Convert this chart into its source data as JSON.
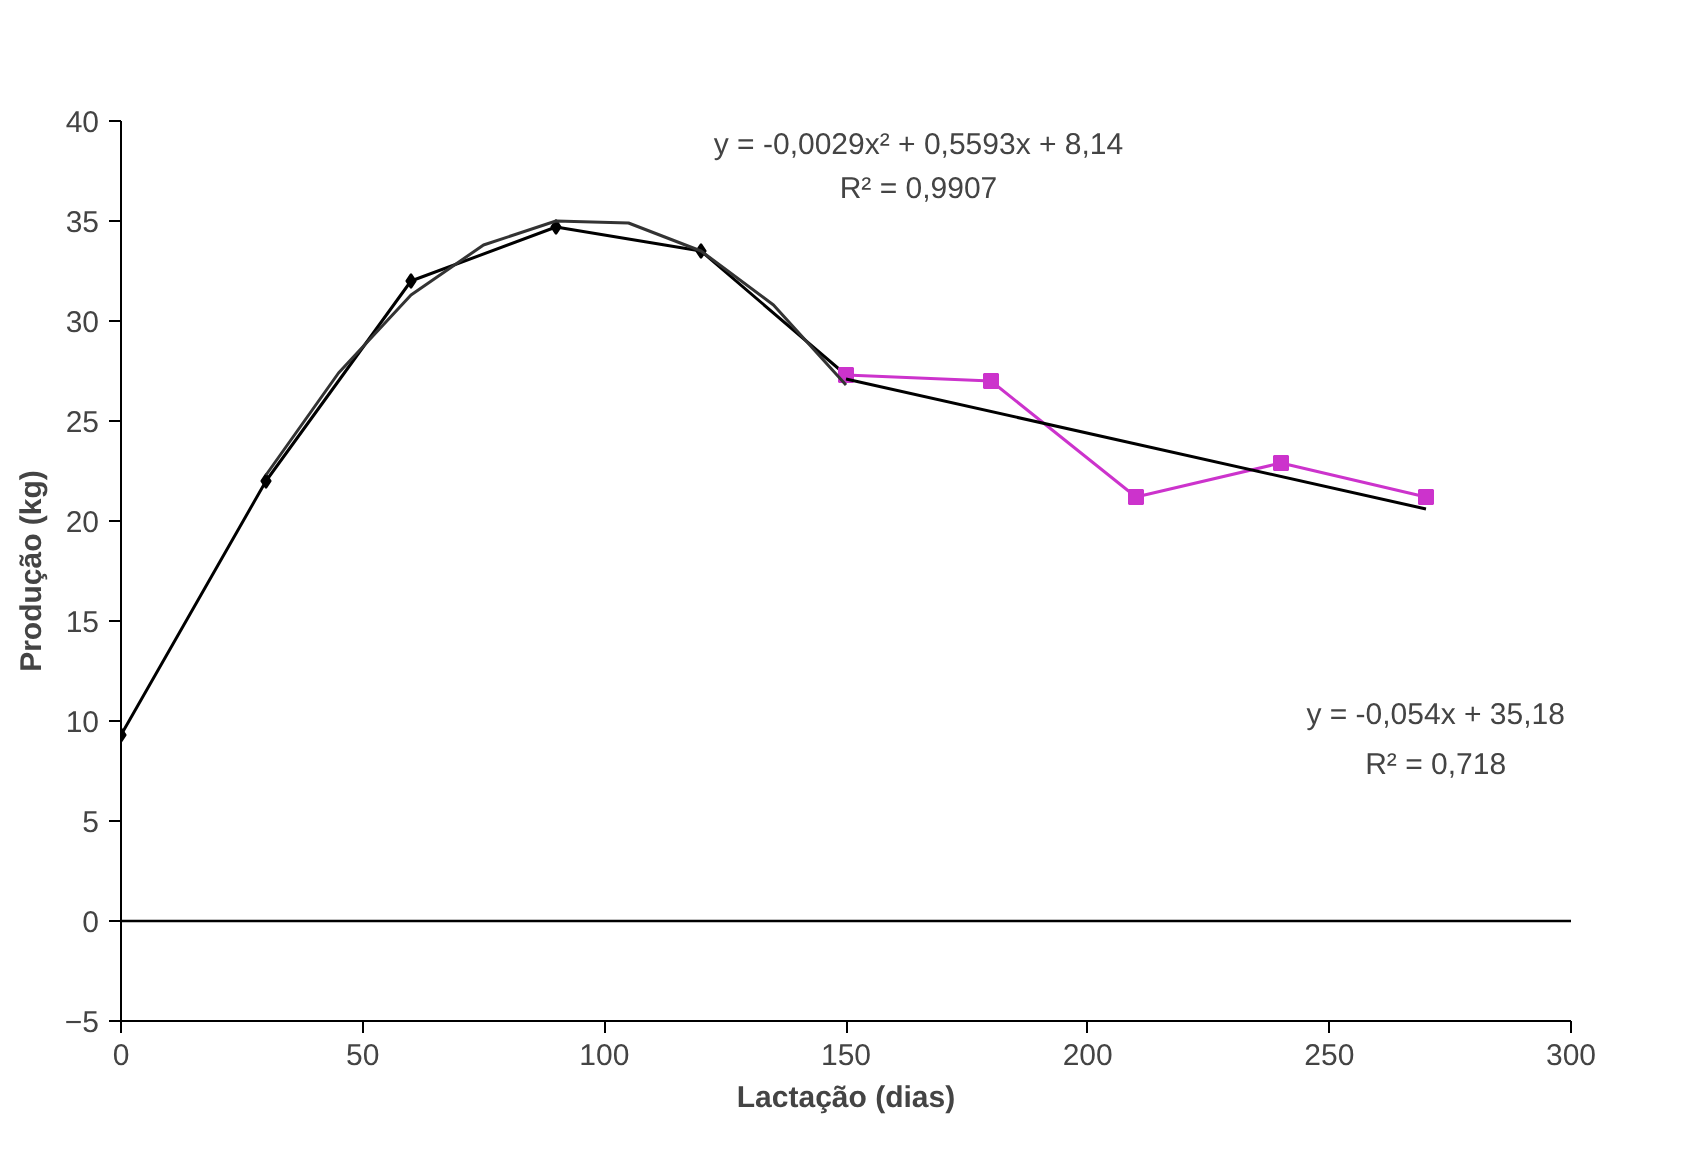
{
  "chart_data": {
    "type": "line",
    "xlabel": "Lactação (dias)",
    "ylabel": "Produção (kg)",
    "xlim": [
      0,
      300
    ],
    "xticks": [
      0,
      50,
      100,
      150,
      200,
      250,
      300
    ],
    "ylim": [
      -5,
      40
    ],
    "yticks": [
      -5,
      0,
      5,
      10,
      15,
      20,
      25,
      30,
      35,
      40
    ],
    "grid": false,
    "marker": "diamond",
    "ref_lines": [
      {
        "axis": "y",
        "value": 0,
        "color": "#000000"
      }
    ],
    "series": [
      {
        "color": "#000000",
        "x": [
          0,
          30,
          60,
          90,
          120,
          150
        ],
        "values": [
          9.3,
          22,
          32,
          34.7,
          33.5,
          27.3
        ]
      },
      {
        "color": "#cc33cc",
        "marker": "square",
        "x": [
          150,
          180,
          210,
          240,
          270
        ],
        "values": [
          27.3,
          27,
          21.2,
          22.9,
          21.2
        ]
      },
      {
        "color": "#333333",
        "marker": "none",
        "x": [
          30,
          45,
          60,
          75,
          90,
          105,
          120,
          135,
          150
        ],
        "values": [
          22.3,
          27.4,
          31.3,
          33.8,
          35.0,
          34.9,
          33.5,
          30.8,
          26.8
        ]
      },
      {
        "color": "#000000",
        "marker": "none",
        "x": [
          150,
          270
        ],
        "values": [
          27.1,
          20.6
        ]
      }
    ],
    "annotations": [
      "y = -0,0029x² + 0,5593x + 8,14",
      "R² = 0,9907",
      "y = -0,054x + 35,18",
      "R² = 0,718"
    ]
  }
}
